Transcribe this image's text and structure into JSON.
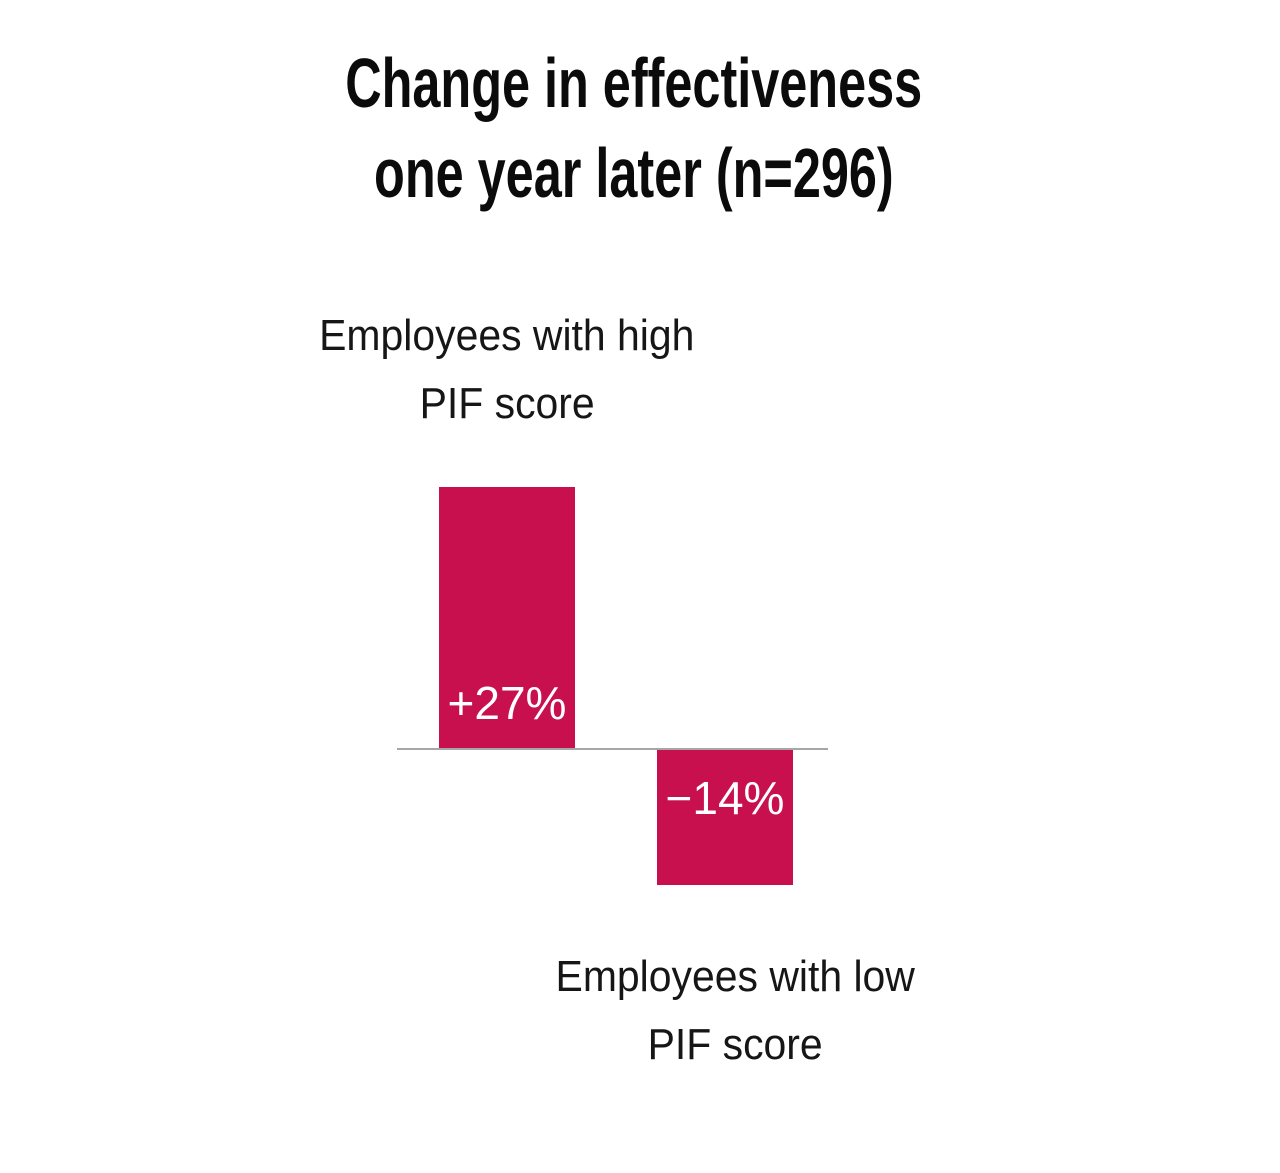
{
  "title": {
    "line1": "Change in effectiveness",
    "line2": "one year later (n=296)"
  },
  "labels": {
    "high": {
      "line1": "Employees with high",
      "line2": "PIF score"
    },
    "low": {
      "line1": "Employees with low",
      "line2": "PIF score"
    }
  },
  "chart_data": {
    "type": "bar",
    "title": "Change in effectiveness one year later (n=296)",
    "categories": [
      "Employees with high PIF score",
      "Employees with low PIF score"
    ],
    "values": [
      27,
      -14
    ],
    "value_labels": [
      "+27%",
      "−14%"
    ],
    "unit": "%",
    "ylim": [
      -16,
      28
    ],
    "grid": false,
    "legend": false,
    "bar_color": "#c8104e",
    "value_label_color": "#ffffff",
    "axis_color": "#a6a6a6",
    "title_color": "#0b0b0b",
    "category_label_color": "#161616",
    "background_color": "#ffffff"
  }
}
